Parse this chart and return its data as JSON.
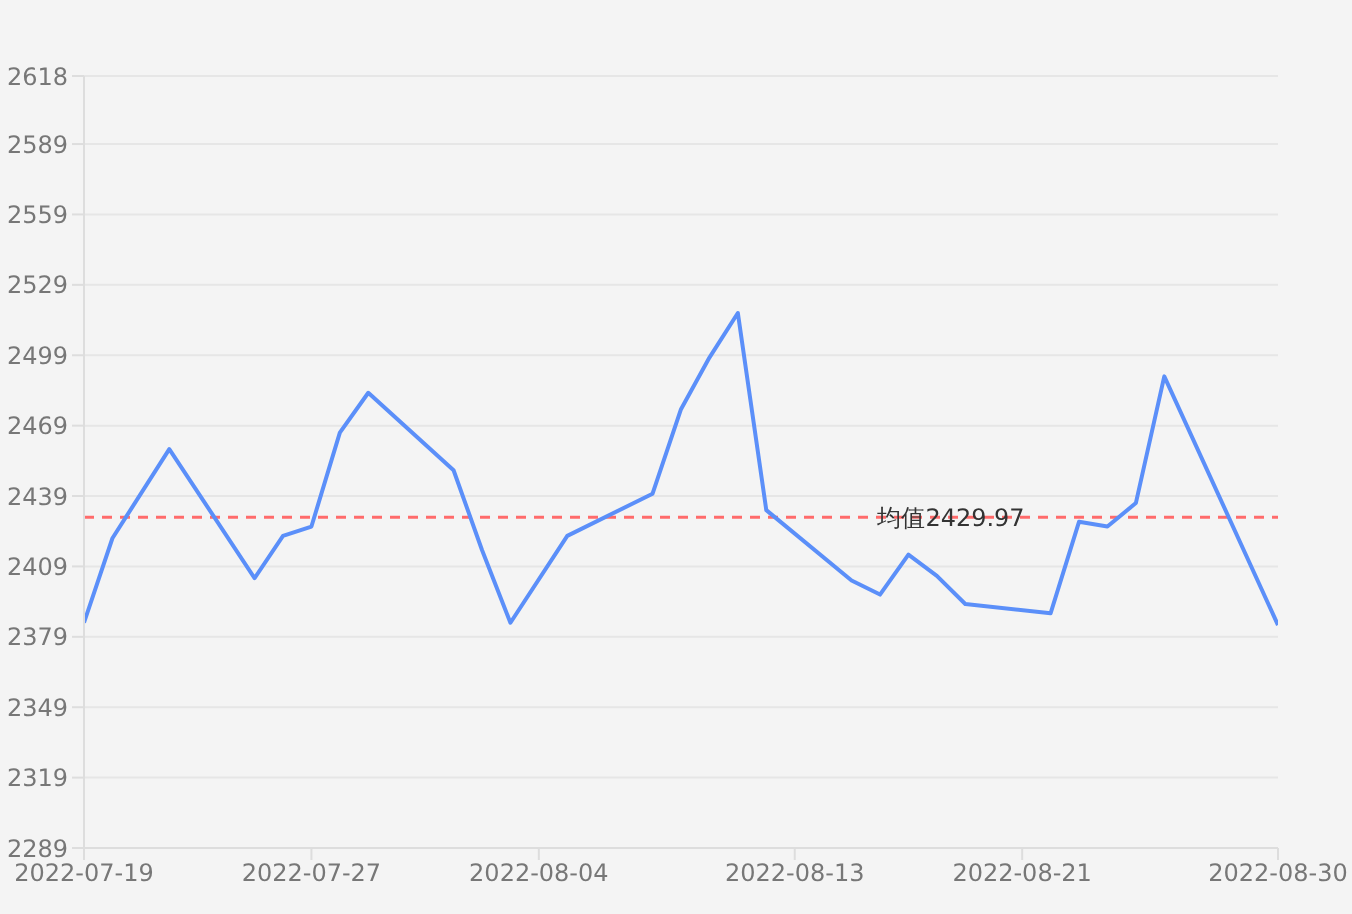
{
  "chart_data": {
    "type": "line",
    "x": [
      "2022-07-19",
      "2022-07-20",
      "2022-07-22",
      "2022-07-25",
      "2022-07-26",
      "2022-07-27",
      "2022-07-28",
      "2022-07-29",
      "2022-08-01",
      "2022-08-02",
      "2022-08-03",
      "2022-08-05",
      "2022-08-08",
      "2022-08-09",
      "2022-08-10",
      "2022-08-11",
      "2022-08-12",
      "2022-08-15",
      "2022-08-16",
      "2022-08-17",
      "2022-08-18",
      "2022-08-19",
      "2022-08-22",
      "2022-08-23",
      "2022-08-24",
      "2022-08-25",
      "2022-08-26",
      "2022-08-30"
    ],
    "series": [
      {
        "color": "#5b8ff9",
        "values": [
          2385,
          2421,
          2459,
          2404,
          2422,
          2426,
          2466,
          2483,
          2450,
          2416,
          2385,
          2422,
          2440,
          2476,
          2498,
          2517,
          2433,
          2403,
          2397,
          2414,
          2405,
          2393,
          2389,
          2428,
          2426,
          2436,
          2490,
          2384
        ]
      }
    ],
    "xlim": [
      "2022-07-19",
      "2022-08-30"
    ],
    "xticks": [
      "2022-07-19",
      "2022-07-27",
      "2022-08-04",
      "2022-08-13",
      "2022-08-21",
      "2022-08-30"
    ],
    "ylim": [
      2289,
      2618
    ],
    "yticks": [
      2289,
      2319,
      2349,
      2379,
      2409,
      2439,
      2469,
      2499,
      2529,
      2559,
      2589,
      2618
    ],
    "ref_lines": [
      {
        "axis": "y",
        "value": 2429.97,
        "label": "均值2429.97",
        "color": "#ff6b6b",
        "line_style": "dashed"
      }
    ],
    "grid": "y",
    "marker": "none",
    "line_style": "solid",
    "legend": false
  }
}
